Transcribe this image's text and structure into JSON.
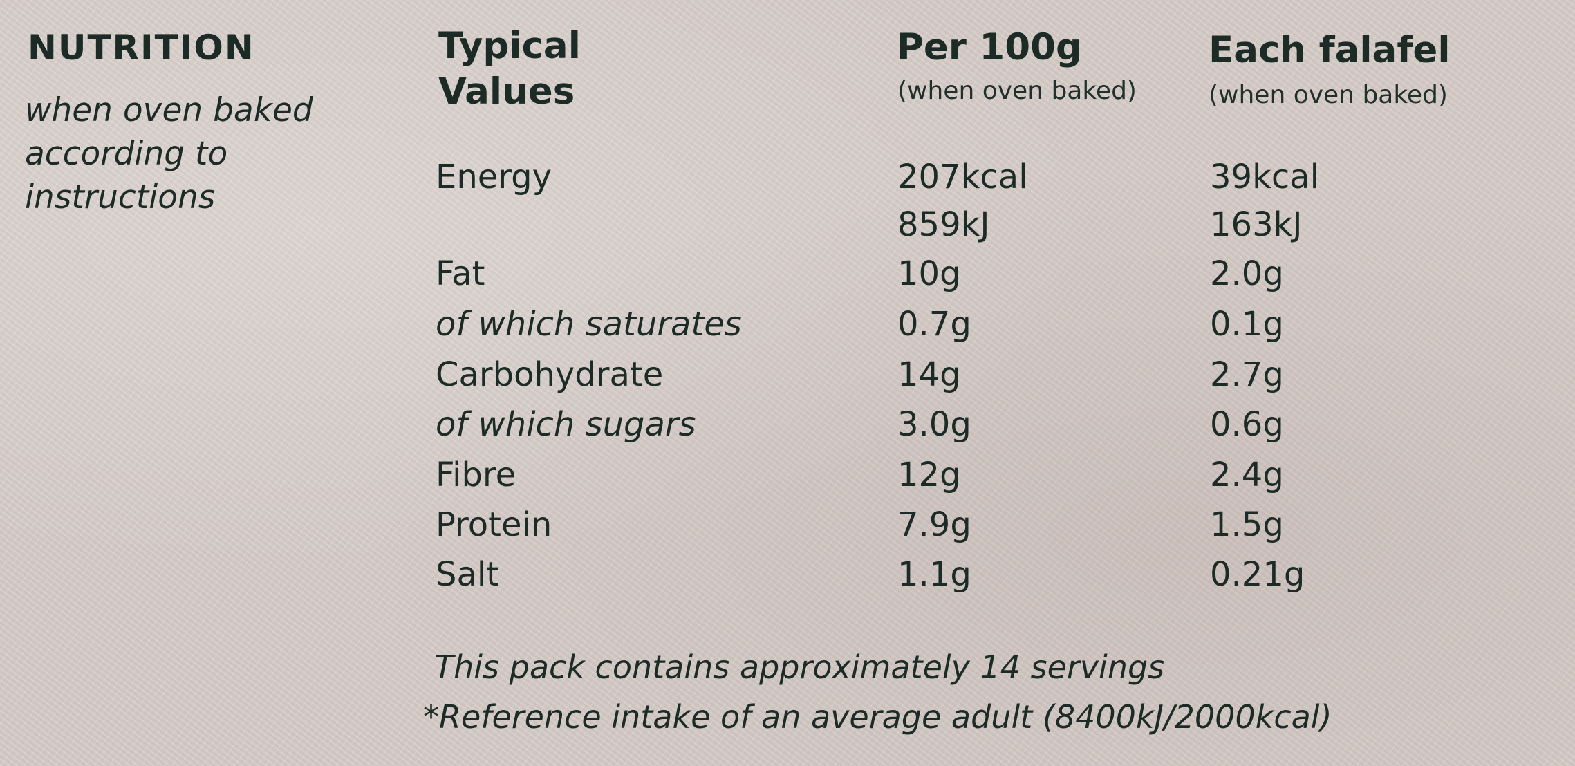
{
  "side": {
    "title": "NUTRITION",
    "note": "when oven baked according to instructions"
  },
  "columns": {
    "typical": "Typical Values",
    "per100": "Per 100g",
    "per100_note": "(when oven baked)",
    "each": "Each falafel",
    "each_note": "(when oven baked)"
  },
  "rows": [
    {
      "label": "Energy",
      "per100": "207kcal",
      "each": "39kcal",
      "italic": false
    },
    {
      "label": "",
      "per100": "859kJ",
      "each": "163kJ",
      "italic": false
    },
    {
      "label": "Fat",
      "per100": "10g",
      "each": "2.0g",
      "italic": false
    },
    {
      "label": "of which saturates",
      "per100": "0.7g",
      "each": "0.1g",
      "italic": true
    },
    {
      "label": "Carbohydrate",
      "per100": "14g",
      "each": "2.7g",
      "italic": false
    },
    {
      "label": "of which sugars",
      "per100": "3.0g",
      "each": "0.6g",
      "italic": true
    },
    {
      "label": "Fibre",
      "per100": "12g",
      "each": "2.4g",
      "italic": false
    },
    {
      "label": "Protein",
      "per100": "7.9g",
      "each": "1.5g",
      "italic": false
    },
    {
      "label": "Salt",
      "per100": "1.1g",
      "each": "0.21g",
      "italic": false
    }
  ],
  "footer": {
    "servings": "This pack contains approximately 14 servings",
    "reference": "*Reference intake of an average adult (8400kJ/2000kcal)"
  },
  "colors": {
    "ink": "#1c2b25",
    "background": "#d9cfcb"
  }
}
